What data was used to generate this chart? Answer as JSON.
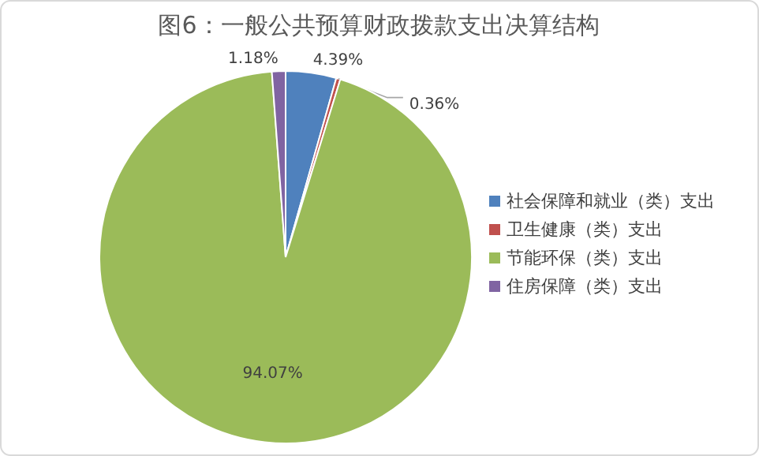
{
  "chart_data": {
    "type": "pie",
    "title": "图6：一般公共预算财政拨款支出决算结构",
    "categories": [
      "社会保障和就业（类）支出",
      "卫生健康（类）支出",
      "节能环保（类）支出",
      "住房保障（类）支出"
    ],
    "values": [
      4.39,
      0.36,
      94.07,
      1.18
    ],
    "value_labels": [
      "4.39%",
      "0.36%",
      "94.07%",
      "1.18%"
    ],
    "colors": [
      "#4f81bd",
      "#c0504d",
      "#9bbb59",
      "#8064a2"
    ],
    "legend": "right"
  }
}
